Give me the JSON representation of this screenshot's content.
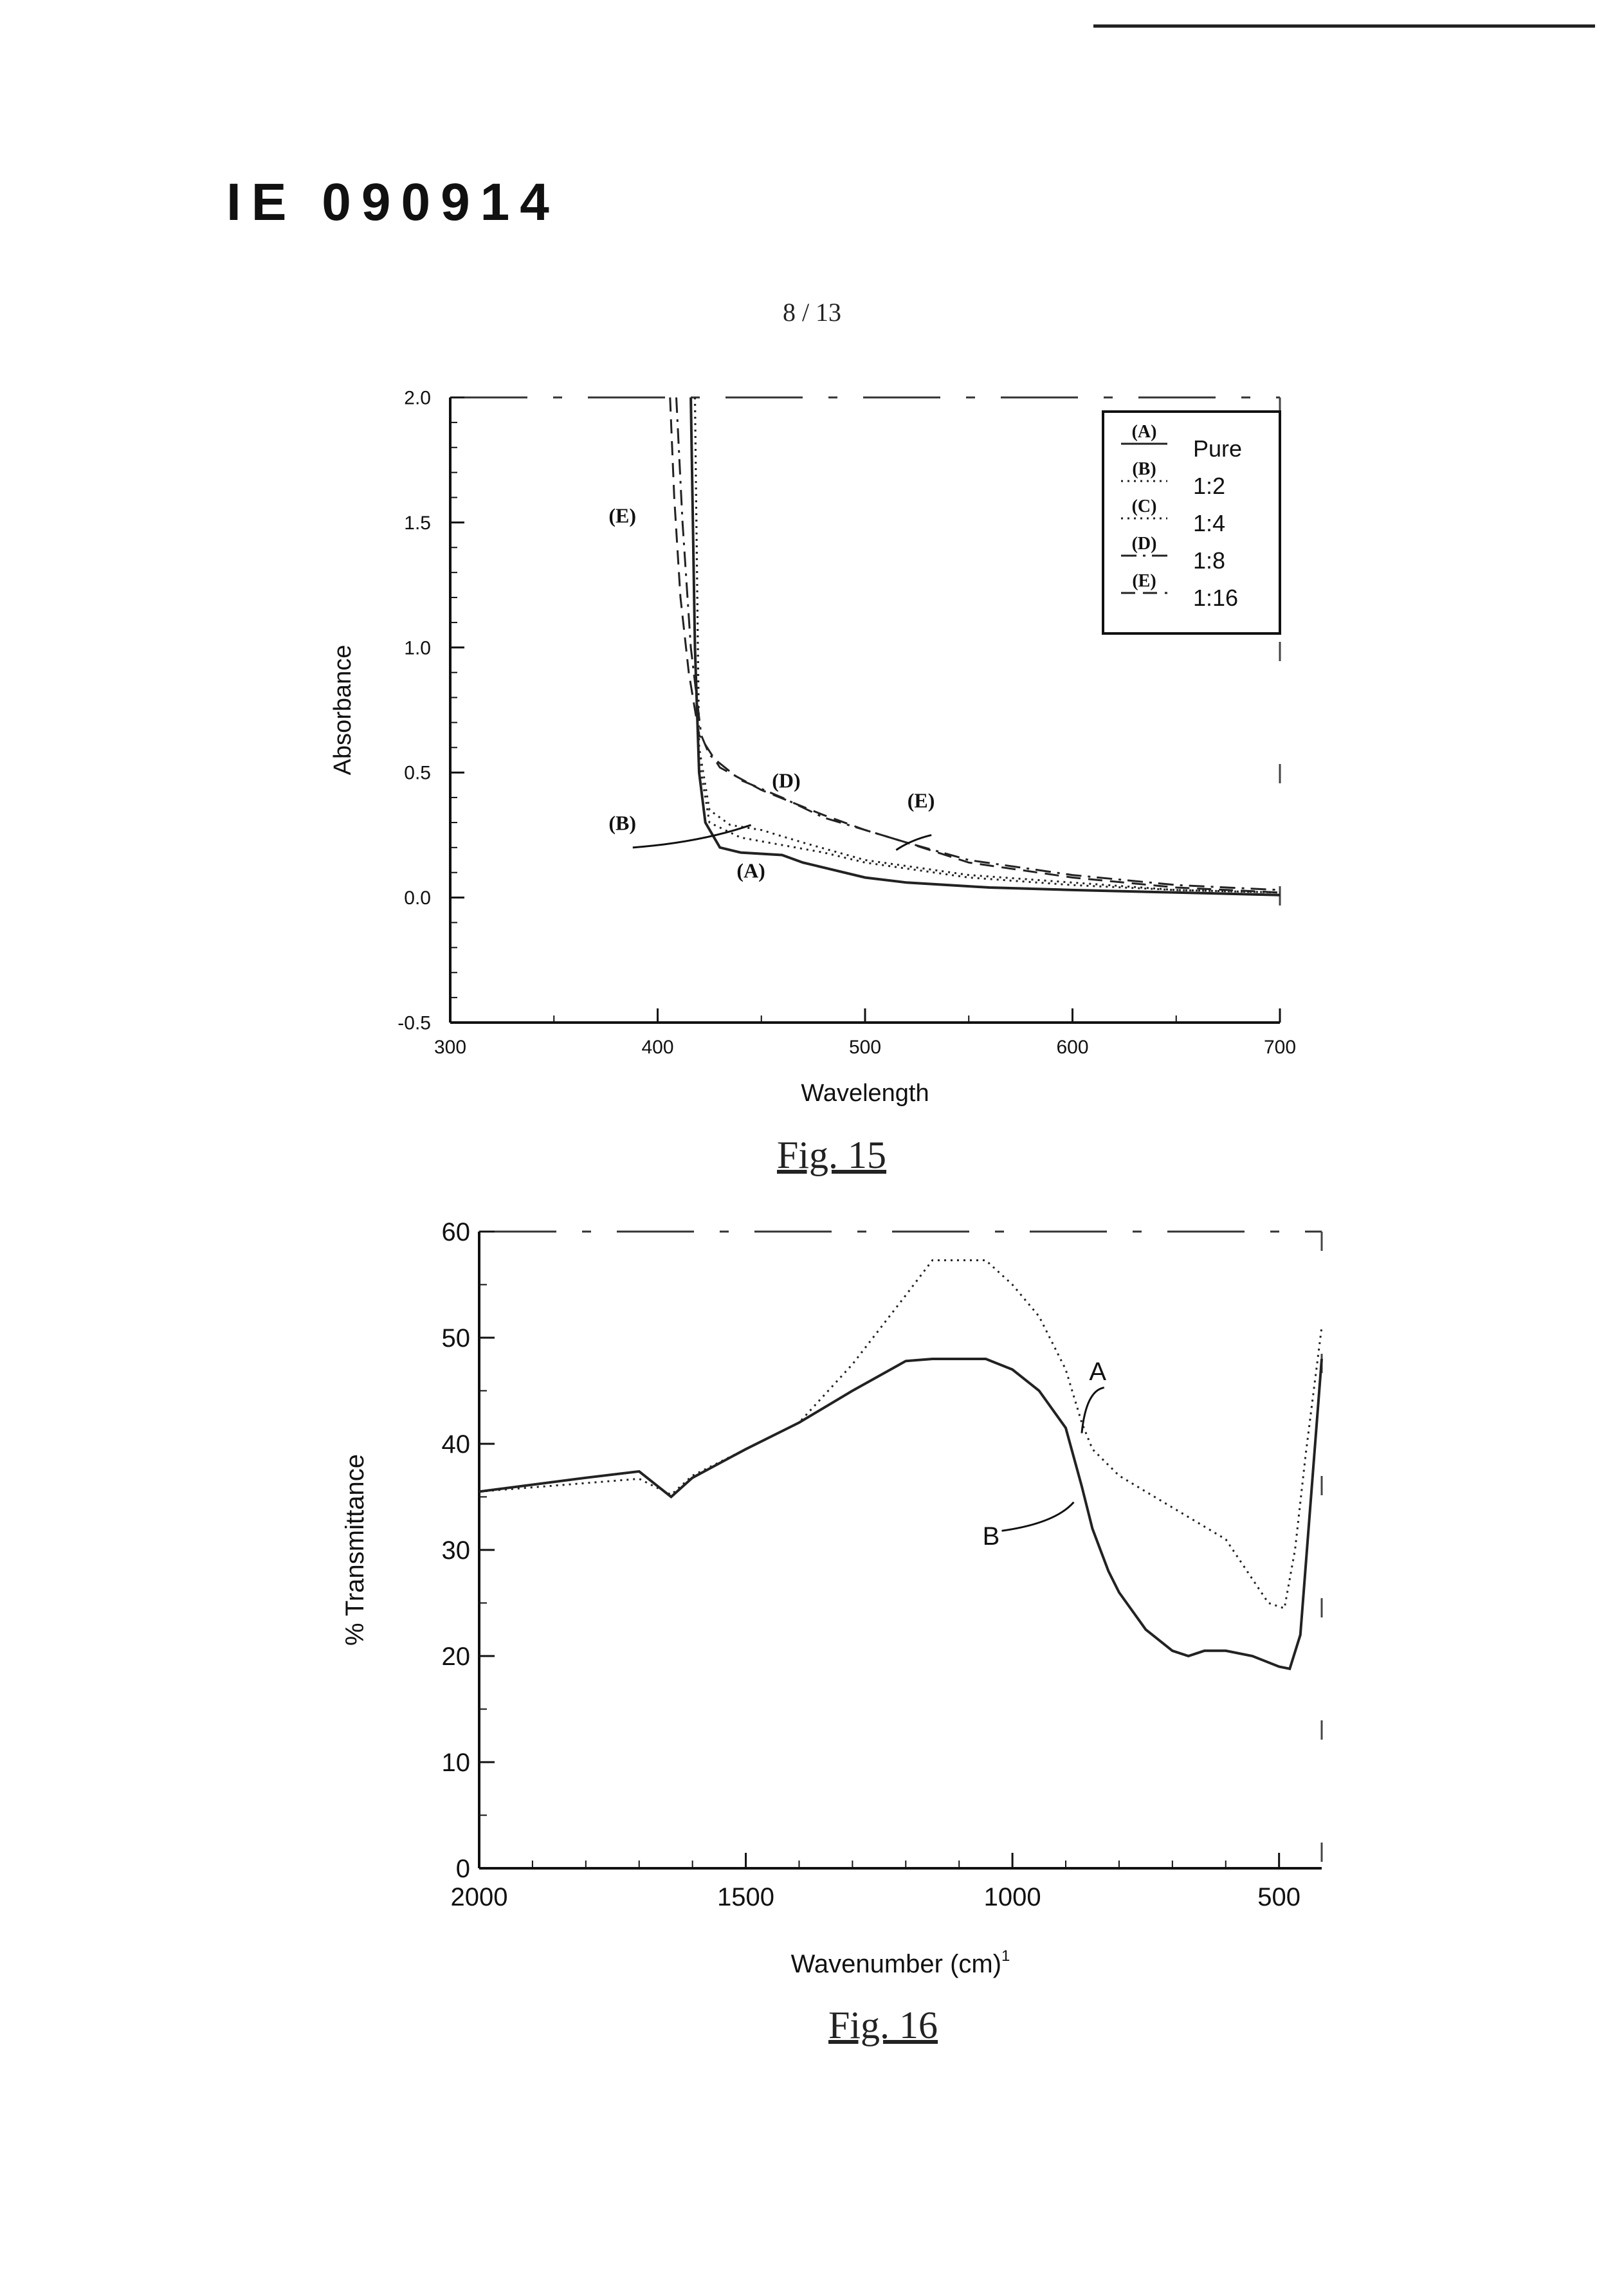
{
  "document": {
    "doc_id": "IE 090914",
    "page_number": "8 / 13"
  },
  "figures": {
    "fig15_caption": "Fig. 15",
    "fig16_caption": "Fig. 16"
  },
  "chart_data": [
    {
      "id": "fig15",
      "type": "line",
      "title": "",
      "xlabel": "Wavelength",
      "ylabel": "Absorbance",
      "xlim": [
        300,
        700
      ],
      "ylim": [
        -0.5,
        2.0
      ],
      "x_ticks": [
        300,
        400,
        500,
        600,
        700
      ],
      "x_tick_labels": [
        "300",
        "400",
        "500",
        "600",
        "700"
      ],
      "y_ticks": [
        -0.5,
        0.0,
        0.5,
        1.0,
        1.5,
        2.0
      ],
      "y_tick_labels": [
        "-0.5",
        "0.0",
        "0.5",
        "1.0",
        "1.5",
        "2.0"
      ],
      "legend_position": "top-right",
      "series": [
        {
          "name": "(A)",
          "legend_label": "Pure",
          "style": "solid",
          "x": [
            416,
            418,
            420,
            423,
            430,
            440,
            460,
            470,
            480,
            500,
            520,
            560,
            600,
            650,
            700
          ],
          "y": [
            2.0,
            1.0,
            0.5,
            0.3,
            0.2,
            0.18,
            0.17,
            0.14,
            0.12,
            0.08,
            0.06,
            0.04,
            0.03,
            0.02,
            0.01
          ]
        },
        {
          "name": "(B)",
          "legend_label": "1:2",
          "style": "dotted",
          "x": [
            418,
            420,
            425,
            435,
            450,
            470,
            500,
            550,
            600,
            650,
            700
          ],
          "y": [
            2.0,
            0.6,
            0.35,
            0.29,
            0.27,
            0.22,
            0.15,
            0.09,
            0.06,
            0.03,
            0.02
          ]
        },
        {
          "name": "(C)",
          "legend_label": "1:4",
          "style": "dotted",
          "x": [
            418,
            420,
            425,
            440,
            460,
            480,
            500,
            550,
            600,
            650,
            700
          ],
          "y": [
            2.0,
            0.55,
            0.3,
            0.24,
            0.21,
            0.18,
            0.14,
            0.08,
            0.05,
            0.03,
            0.02
          ]
        },
        {
          "name": "(D)",
          "legend_label": "1:8",
          "style": "dash-dot",
          "x": [
            409,
            412,
            416,
            421,
            425,
            440,
            460,
            480,
            500,
            520,
            550,
            600,
            650,
            700
          ],
          "y": [
            2.0,
            1.5,
            1.0,
            0.65,
            0.57,
            0.47,
            0.4,
            0.32,
            0.27,
            0.22,
            0.15,
            0.09,
            0.05,
            0.03
          ]
        },
        {
          "name": "(E)",
          "legend_label": "1:16",
          "style": "dashed",
          "x": [
            406,
            408,
            411,
            415,
            420,
            430,
            450,
            480,
            500,
            520,
            550,
            600,
            650,
            700
          ],
          "y": [
            2.0,
            1.6,
            1.2,
            0.9,
            0.65,
            0.52,
            0.43,
            0.33,
            0.27,
            0.22,
            0.14,
            0.08,
            0.04,
            0.02
          ]
        }
      ],
      "annotations": [
        {
          "text": "(E)",
          "x": 383,
          "y": 1.5
        },
        {
          "text": "(D)",
          "x": 462,
          "y": 0.44
        },
        {
          "text": "(E)",
          "x": 527,
          "y": 0.36
        },
        {
          "text": "(B)",
          "x": 383,
          "y": 0.27
        },
        {
          "text": "(A)",
          "x": 445,
          "y": 0.08
        }
      ]
    },
    {
      "id": "fig16",
      "type": "line",
      "title": "",
      "xlabel": "Wavenumber (cm)",
      "xlabel_superscript": "1",
      "ylabel": "% Transmittance",
      "xlim": [
        2000,
        420
      ],
      "ylim": [
        0,
        60
      ],
      "x_ticks": [
        2000,
        1500,
        1000,
        500
      ],
      "x_tick_labels": [
        "2000",
        "1500",
        "1000",
        "500"
      ],
      "y_ticks": [
        0,
        10,
        20,
        30,
        40,
        50,
        60
      ],
      "y_tick_labels": [
        "0",
        "10",
        "20",
        "30",
        "40",
        "50",
        "60"
      ],
      "legend_position": "none",
      "series": [
        {
          "name": "A",
          "style": "dotted",
          "x": [
            2000,
            1800,
            1700,
            1640,
            1600,
            1500,
            1400,
            1300,
            1200,
            1150,
            1050,
            1000,
            950,
            900,
            870,
            850,
            800,
            700,
            600,
            520,
            490,
            470,
            450,
            430,
            420
          ],
          "y": [
            35.5,
            36.3,
            36.7,
            35.2,
            37.0,
            39.5,
            42.0,
            47.5,
            54.0,
            57.3,
            57.3,
            55.0,
            52.0,
            47.0,
            42.0,
            39.5,
            37.0,
            34.0,
            31.0,
            25.0,
            24.5,
            30.0,
            39.0,
            47.0,
            51.0
          ]
        },
        {
          "name": "B",
          "style": "solid",
          "x": [
            2000,
            1800,
            1700,
            1640,
            1600,
            1500,
            1400,
            1300,
            1200,
            1150,
            1050,
            1000,
            950,
            900,
            870,
            850,
            820,
            800,
            750,
            700,
            670,
            640,
            600,
            550,
            500,
            480,
            460,
            440,
            420
          ],
          "y": [
            35.5,
            36.8,
            37.4,
            35.0,
            36.8,
            39.5,
            42.0,
            45.0,
            47.8,
            48.0,
            48.0,
            47.0,
            45.0,
            41.5,
            36.0,
            32.0,
            28.0,
            26.0,
            22.5,
            20.5,
            20.0,
            20.5,
            20.5,
            20.0,
            19.0,
            18.8,
            22.0,
            35.0,
            48.0
          ]
        }
      ],
      "annotations": [
        {
          "text": "A",
          "x": 840,
          "y": 46
        },
        {
          "text": "B",
          "x": 1040,
          "y": 30.5
        }
      ]
    }
  ]
}
